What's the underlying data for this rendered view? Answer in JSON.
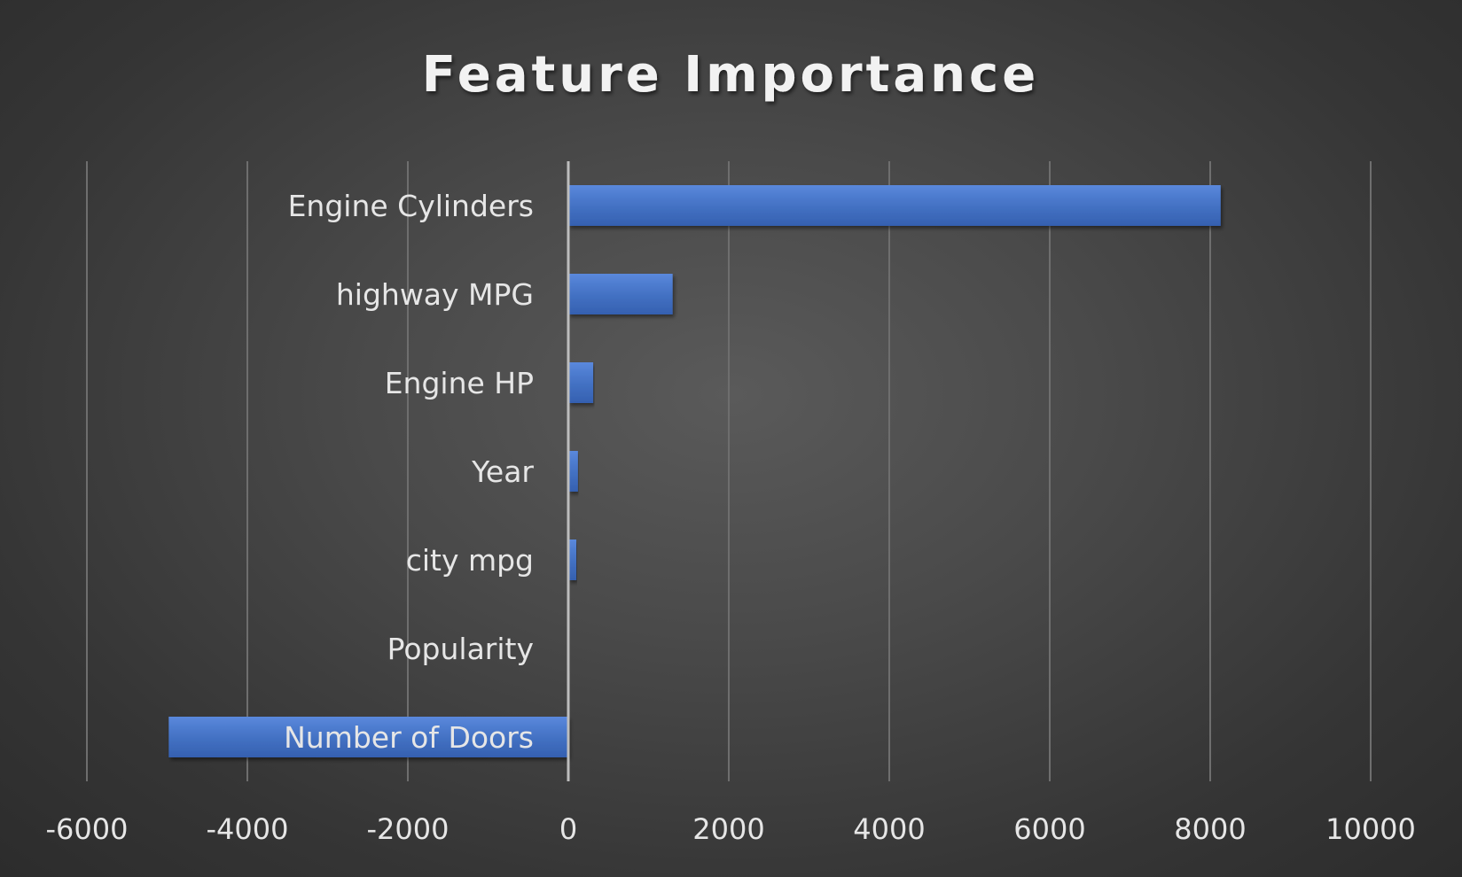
{
  "chart_data": {
    "type": "bar",
    "orientation": "horizontal",
    "title": "Feature Importance",
    "xlabel": "",
    "ylabel": "",
    "categories": [
      "Engine Cylinders",
      "highway MPG",
      "Engine HP",
      "Year",
      "city mpg",
      "Popularity",
      "Number of Doors"
    ],
    "values": [
      8130,
      1300,
      310,
      120,
      100,
      5,
      -4980
    ],
    "xlim": [
      -6000,
      10000
    ],
    "xticks": [
      "-6000",
      "-4000",
      "-2000",
      "0",
      "2000",
      "4000",
      "6000",
      "8000",
      "10000"
    ],
    "grid": true,
    "legend": "none",
    "bar_color": "#4472c4"
  }
}
